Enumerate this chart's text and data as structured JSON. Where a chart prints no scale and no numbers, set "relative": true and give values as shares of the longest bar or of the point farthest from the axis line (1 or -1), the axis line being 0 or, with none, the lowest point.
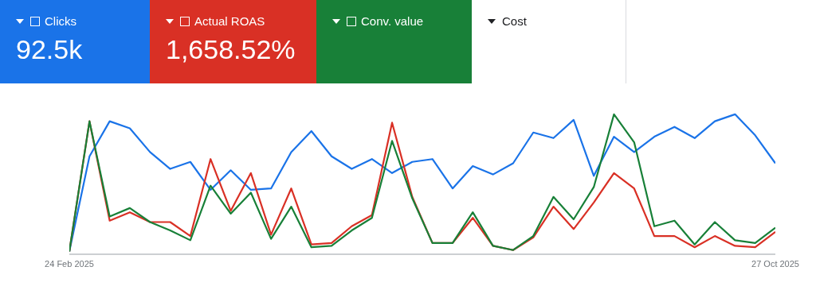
{
  "chart_data": {
    "type": "line",
    "relative": true,
    "legend": "top",
    "marker": "none",
    "line_style": "solid",
    "categories": [
      "24 Feb 2025",
      null,
      null,
      null,
      null,
      null,
      null,
      null,
      null,
      null,
      null,
      null,
      null,
      null,
      null,
      null,
      null,
      null,
      null,
      null,
      null,
      null,
      null,
      null,
      null,
      null,
      null,
      null,
      null,
      null,
      null,
      null,
      null,
      null,
      null,
      "27 Oct 2025"
    ],
    "series": [
      {
        "name": "Clicks",
        "color": "#1a73e8",
        "values": [
          0.02,
          0.7,
          0.95,
          0.9,
          0.73,
          0.61,
          0.66,
          0.46,
          0.6,
          0.46,
          0.47,
          0.73,
          0.88,
          0.7,
          0.61,
          0.68,
          0.58,
          0.66,
          0.68,
          0.47,
          0.63,
          0.57,
          0.65,
          0.87,
          0.83,
          0.96,
          0.56,
          0.84,
          0.73,
          0.84,
          0.91,
          0.83,
          0.95,
          1.0,
          0.85,
          0.65
        ]
      },
      {
        "name": "Actual ROAS",
        "color": "#d93025",
        "values": [
          0.02,
          0.95,
          0.24,
          0.3,
          0.23,
          0.23,
          0.13,
          0.68,
          0.31,
          0.58,
          0.14,
          0.47,
          0.07,
          0.08,
          0.2,
          0.28,
          0.94,
          0.41,
          0.08,
          0.08,
          0.26,
          0.06,
          0.03,
          0.12,
          0.34,
          0.18,
          0.37,
          0.58,
          0.47,
          0.13,
          0.13,
          0.05,
          0.13,
          0.06,
          0.05,
          0.16
        ]
      },
      {
        "name": "Conv. value",
        "color": "#188038",
        "values": [
          0.02,
          0.95,
          0.27,
          0.33,
          0.23,
          0.17,
          0.1,
          0.49,
          0.29,
          0.44,
          0.11,
          0.34,
          0.05,
          0.06,
          0.17,
          0.26,
          0.81,
          0.4,
          0.08,
          0.08,
          0.3,
          0.06,
          0.03,
          0.13,
          0.41,
          0.25,
          0.48,
          1.0,
          0.8,
          0.2,
          0.24,
          0.07,
          0.23,
          0.1,
          0.08,
          0.19
        ]
      }
    ],
    "annotations": [
      "92.5k",
      "1,658.52%",
      "Cost"
    ]
  }
}
